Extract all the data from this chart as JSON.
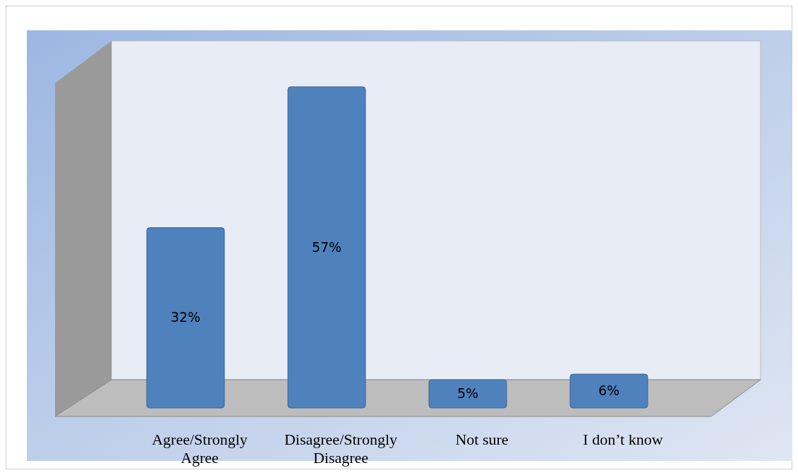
{
  "chart_data": {
    "type": "bar",
    "categories": [
      "Agree/Strongly Agree",
      "Disagree/Strongly Disagree",
      "Not sure",
      "I don’t know"
    ],
    "values": [
      32,
      57,
      5,
      6
    ],
    "value_labels": [
      "32%",
      "57%",
      "5%",
      "6%"
    ],
    "color": "#4f81bd"
  }
}
